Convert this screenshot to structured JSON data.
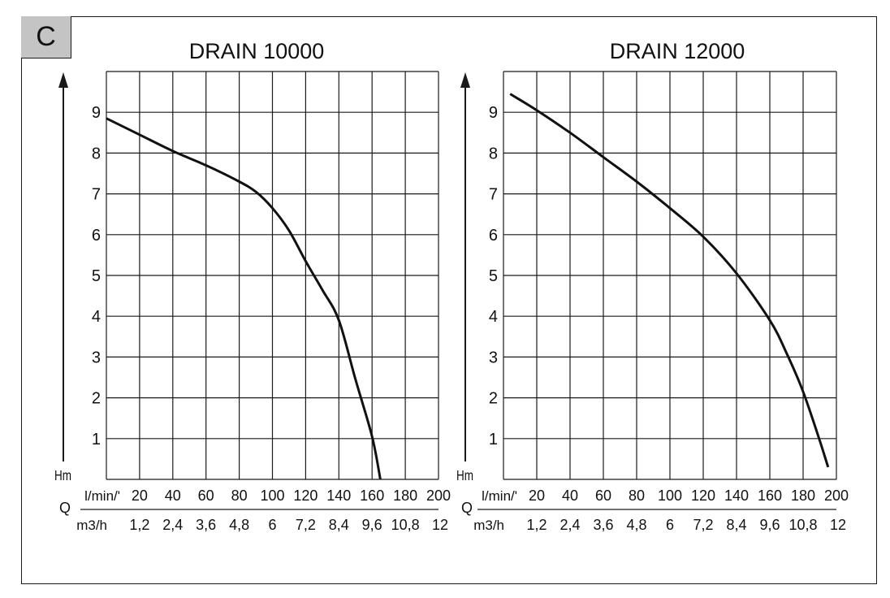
{
  "panel_label": "C",
  "colors": {
    "grid": "#1a1a1a",
    "curve": "#111111",
    "badge": "#c4c4c4"
  },
  "chart_data": [
    {
      "type": "line",
      "title": "DRAIN 10000",
      "ylabel": "Hm",
      "xlabel": "Q",
      "xlim": [
        0,
        200
      ],
      "ylim": [
        0,
        10
      ],
      "grid": true,
      "y_ticks": [
        "1",
        "2",
        "3",
        "4",
        "5",
        "6",
        "7",
        "8",
        "9"
      ],
      "x_unit_primary": "l/min/'",
      "x_ticks_primary": [
        "20",
        "40",
        "60",
        "80",
        "100",
        "120",
        "140",
        "160",
        "180",
        "200"
      ],
      "x_unit_secondary": "m3/h",
      "x_ticks_secondary": [
        "1,2",
        "2,4",
        "3,6",
        "4,8",
        "6",
        "7,2",
        "8,4",
        "9,6",
        "10,8",
        "12"
      ],
      "series": [
        {
          "x": [
            0,
            20,
            40,
            60,
            80,
            90,
            100,
            110,
            120,
            130,
            140,
            150,
            160,
            165
          ],
          "y": [
            8.85,
            8.45,
            8.05,
            7.7,
            7.3,
            7.05,
            6.65,
            6.1,
            5.35,
            4.65,
            3.9,
            2.45,
            1.05,
            0.0
          ]
        }
      ]
    },
    {
      "type": "line",
      "title": "DRAIN 12000",
      "ylabel": "Hm",
      "xlabel": "Q",
      "xlim": [
        0,
        200
      ],
      "ylim": [
        0,
        10
      ],
      "grid": true,
      "y_ticks": [
        "1",
        "2",
        "3",
        "4",
        "5",
        "6",
        "7",
        "8",
        "9"
      ],
      "x_unit_primary": "l/min/'",
      "x_ticks_primary": [
        "20",
        "40",
        "60",
        "80",
        "100",
        "120",
        "140",
        "160",
        "180",
        "200"
      ],
      "x_unit_secondary": "m3/h",
      "x_ticks_secondary": [
        "1,2",
        "2,4",
        "3,6",
        "4,8",
        "6",
        "7,2",
        "8,4",
        "9,6",
        "10,8",
        "12"
      ],
      "series": [
        {
          "x": [
            4,
            20,
            40,
            60,
            80,
            100,
            120,
            140,
            160,
            170,
            180,
            190,
            195
          ],
          "y": [
            9.45,
            9.05,
            8.5,
            7.9,
            7.3,
            6.65,
            5.95,
            5.05,
            3.9,
            3.1,
            2.15,
            0.95,
            0.3
          ]
        }
      ]
    }
  ]
}
